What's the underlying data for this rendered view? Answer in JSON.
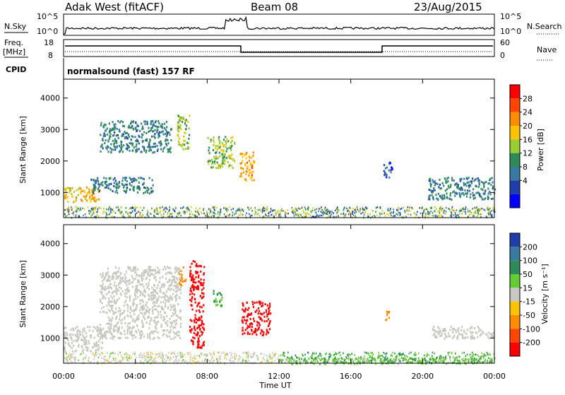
{
  "header": {
    "station": "Adak West (fitACF)",
    "beam": "Beam 08",
    "date": "23/Aug/2015"
  },
  "nsky_panel": {
    "left_label": "N.Sky",
    "right_label": "N.Search",
    "left_ticks": [
      "10^5",
      "10^0"
    ],
    "right_ticks": [
      "10^5",
      "10^0"
    ]
  },
  "freq_panel": {
    "left_label_1": "Freq.",
    "left_label_2": "[MHz]",
    "right_label": "Nave",
    "left_ticks": [
      "18",
      "8"
    ],
    "right_ticks": [
      "60",
      "0"
    ]
  },
  "cpid": {
    "label": "CPID",
    "program": "normalsound (fast) 157 RF"
  },
  "power_colorbar": {
    "label": "Power [dB]",
    "ticks": [
      "28",
      "24",
      "20",
      "16",
      "12",
      "8",
      "4"
    ],
    "colors": [
      "#ff0000",
      "#ff4500",
      "#ff8c00",
      "#ffc300",
      "#9acd32",
      "#2e8b57",
      "#3a7aa0",
      "#1e3faa",
      "#0000ff"
    ]
  },
  "velocity_colorbar": {
    "label": "Velocity [m s⁻¹]",
    "ticks": [
      "200",
      "100",
      "50",
      "15",
      "-15",
      "-50",
      "-100",
      "-200"
    ],
    "colors": [
      "#1e3faa",
      "#3a7aa0",
      "#2e8b57",
      "#66cc33",
      "#c8c8c0",
      "#ffc300",
      "#ff8c00",
      "#ff4500",
      "#ff0000"
    ]
  },
  "x_axis": {
    "label": "Time UT",
    "ticks": [
      "00:00",
      "04:00",
      "08:00",
      "12:00",
      "16:00",
      "20:00",
      "00:00"
    ]
  },
  "y_axis": {
    "label": "Slant Range [km]",
    "ticks": [
      "4000",
      "3000",
      "2000",
      "1000"
    ]
  },
  "chart_data": [
    {
      "type": "heatmap",
      "title": "Power",
      "xlabel": "Time UT",
      "ylabel": "Slant Range [km]",
      "xlim": [
        0,
        24
      ],
      "ylim": [
        200,
        4600
      ],
      "colorbar": "Power [dB]",
      "features": [
        {
          "t": [
            0.0,
            2.0
          ],
          "r": [
            700,
            1200
          ],
          "value_db": 20
        },
        {
          "t": [
            1.5,
            5.0
          ],
          "r": [
            1000,
            1500
          ],
          "value_db": 10
        },
        {
          "t": [
            2.0,
            6.0
          ],
          "r": [
            2300,
            3300
          ],
          "value_db": 10
        },
        {
          "t": [
            6.3,
            7.0
          ],
          "r": [
            2400,
            3500
          ],
          "value_db": 16
        },
        {
          "t": [
            8.0,
            9.5
          ],
          "r": [
            1800,
            2800
          ],
          "value_db": 16
        },
        {
          "t": [
            9.8,
            10.6
          ],
          "r": [
            1400,
            2300
          ],
          "value_db": 22
        },
        {
          "t": [
            17.8,
            18.3
          ],
          "r": [
            1500,
            2000
          ],
          "value_db": 6
        },
        {
          "t": [
            20.3,
            24.0
          ],
          "r": [
            800,
            1500
          ],
          "value_db": 10
        }
      ]
    },
    {
      "type": "heatmap",
      "title": "Velocity",
      "xlabel": "Time UT",
      "ylabel": "Slant Range [km]",
      "xlim": [
        0,
        24
      ],
      "ylim": [
        200,
        4600
      ],
      "colorbar": "Velocity [m s-1]",
      "features": [
        {
          "t": [
            0.0,
            2.2
          ],
          "r": [
            600,
            1400
          ],
          "value_ms": 0
        },
        {
          "t": [
            2.0,
            6.5
          ],
          "r": [
            1000,
            3300
          ],
          "value_ms": 0
        },
        {
          "t": [
            6.4,
            6.8
          ],
          "r": [
            2700,
            3300
          ],
          "value_ms": -40
        },
        {
          "t": [
            7.0,
            7.8
          ],
          "r": [
            700,
            3500
          ],
          "value_ms": -200
        },
        {
          "t": [
            8.3,
            8.8
          ],
          "r": [
            2000,
            2600
          ],
          "value_ms": 30
        },
        {
          "t": [
            9.9,
            11.5
          ],
          "r": [
            1100,
            2200
          ],
          "value_ms": -200
        },
        {
          "t": [
            17.8,
            18.2
          ],
          "r": [
            1600,
            1900
          ],
          "value_ms": -40
        },
        {
          "t": [
            20.5,
            24.0
          ],
          "r": [
            1000,
            1400
          ],
          "value_ms": 0
        },
        {
          "t": [
            12.0,
            24.0
          ],
          "r": [
            200,
            400
          ],
          "value_ms": 20
        }
      ]
    }
  ]
}
